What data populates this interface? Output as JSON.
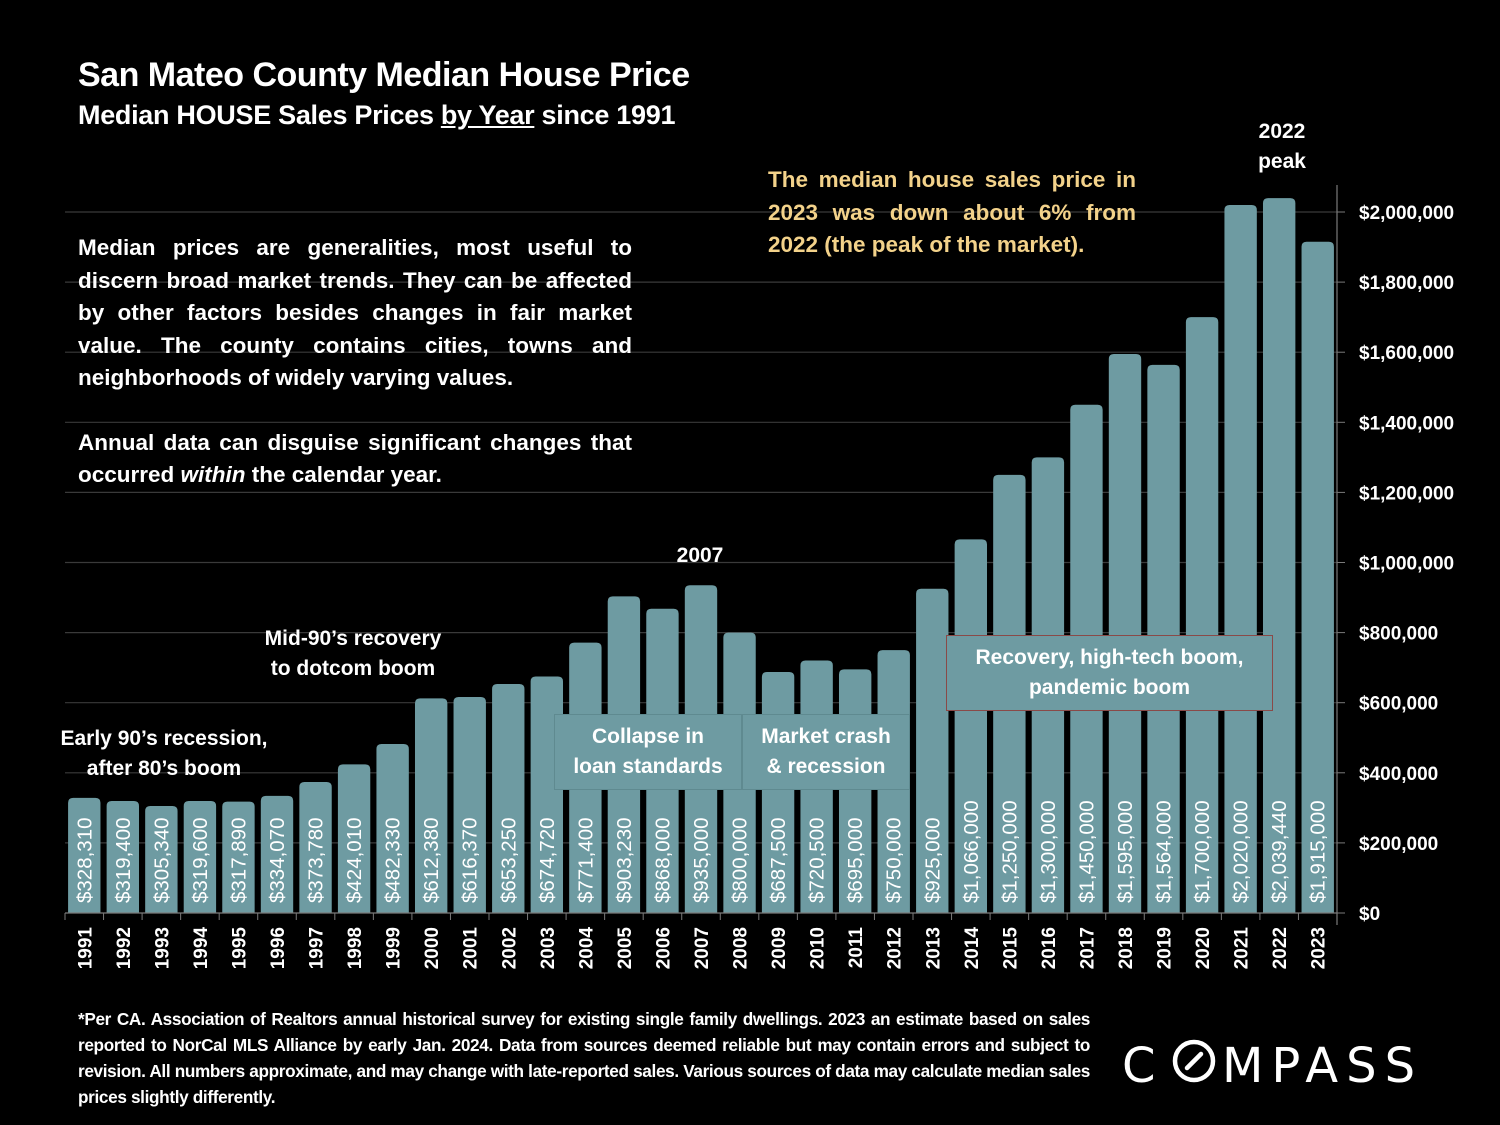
{
  "header": {
    "title": "San Mateo County Median House Price",
    "subtitle_pre": "Median HOUSE Sales Prices ",
    "subtitle_underlined": "by Year",
    "subtitle_post": " since 1991"
  },
  "notes": {
    "paragraph1": "Median prices are generalities, most useful to discern broad market trends. They can be affected by other factors besides changes in fair market value. The county contains cities, towns and neighborhoods of widely varying values.",
    "paragraph2_pre": "Annual data can disguise significant changes that occurred ",
    "paragraph2_italic": "within",
    "paragraph2_post": " the calendar year."
  },
  "callout": {
    "text": "The median house sales price in 2023 was down about 6% from 2022 (the peak of the market).",
    "color": "#f3d28a"
  },
  "annotations": {
    "early90s": [
      "Early 90’s recession,",
      "after 80’s boom"
    ],
    "mid90s": [
      "Mid-90’s recovery",
      "to dotcom boom"
    ],
    "y2007": "2007",
    "peak": [
      "2022",
      "peak"
    ],
    "collapse": [
      "Collapse in",
      "loan standards"
    ],
    "crash": [
      "Market crash",
      "& recession"
    ],
    "recovery": [
      "Recovery, high-tech boom,",
      "pandemic boom"
    ]
  },
  "footnote": "*Per CA. Association of Realtors annual historical survey for existing single family dwellings. 2023 an estimate based on sales reported to NorCal MLS Alliance by early Jan. 2024. Data from sources deemed reliable but may contain errors and subject to revision. All numbers approximate, and may change with late-reported sales. Various sources of data may calculate median sales prices slightly differently.",
  "brand": {
    "logo_text": "COMPASS"
  },
  "colors": {
    "bar": "#6e9ba2",
    "background": "#000000",
    "recovery_border": "#8a4a48"
  },
  "chart_data": {
    "type": "bar",
    "title": "San Mateo County Median House Price",
    "subtitle": "Median HOUSE Sales Prices by Year since 1991",
    "xlabel": "",
    "ylabel": "",
    "categories": [
      "1991",
      "1992",
      "1993",
      "1994",
      "1995",
      "1996",
      "1997",
      "1998",
      "1999",
      "2000",
      "2001",
      "2002",
      "2003",
      "2004",
      "2005",
      "2006",
      "2007",
      "2008",
      "2009",
      "2010",
      "2011",
      "2012",
      "2013",
      "2014",
      "2015",
      "2016",
      "2017",
      "2018",
      "2019",
      "2020",
      "2021",
      "2022",
      "2023"
    ],
    "values": [
      328310,
      319400,
      305340,
      319600,
      317890,
      334070,
      373780,
      424010,
      482330,
      612380,
      616370,
      653250,
      674720,
      771400,
      903230,
      868000,
      935000,
      800000,
      687500,
      720500,
      695000,
      750000,
      925000,
      1066000,
      1250000,
      1300000,
      1450000,
      1595000,
      1564000,
      1700000,
      2020000,
      2039440,
      1915000
    ],
    "data_labels": [
      "$328,310",
      "$319,400",
      "$305,340",
      "$319,600",
      "$317,890",
      "$334,070",
      "$373,780",
      "$424,010",
      "$482,330",
      "$612,380",
      "$616,370",
      "$653,250",
      "$674,720",
      "$771,400",
      "$903,230",
      "$868,000",
      "$935,000",
      "$800,000",
      "$687,500",
      "$720,500",
      "$695,000",
      "$750,000",
      "$925,000",
      "$1,066,000",
      "$1,250,000",
      "$1,300,000",
      "$1,450,000",
      "$1,595,000",
      "$1,564,000",
      "$1,700,000",
      "$2,020,000",
      "$2,039,440",
      "$1,915,000"
    ],
    "ylim": [
      0,
      2000000
    ],
    "yticks": [
      0,
      200000,
      400000,
      600000,
      800000,
      1000000,
      1200000,
      1400000,
      1600000,
      1800000,
      2000000
    ],
    "ytick_labels": [
      "$0",
      "$200,000",
      "$400,000",
      "$600,000",
      "$800,000",
      "$1,000,000",
      "$1,200,000",
      "$1,400,000",
      "$1,600,000",
      "$1,800,000",
      "$2,000,000"
    ],
    "y_axis_side": "right",
    "grid": true,
    "legend": "none"
  }
}
